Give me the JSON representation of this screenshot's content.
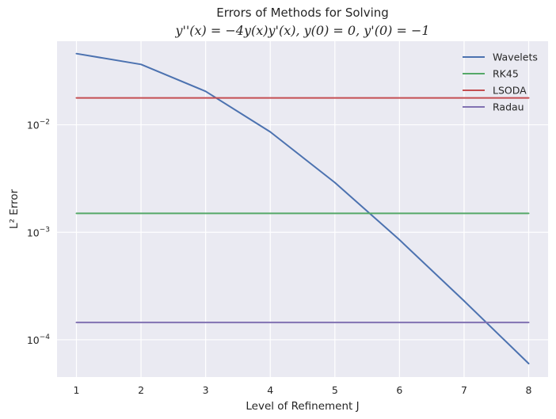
{
  "chart_data": {
    "type": "line",
    "title": "Errors of Methods for Solving",
    "subtitle": "y''(x) = −4y(x)y'(x), y(0) = 0, y'(0) = −1",
    "xlabel": "Level of Refinement J",
    "ylabel": "L² Error",
    "x": [
      1,
      2,
      3,
      4,
      5,
      6,
      7,
      8
    ],
    "xlim": [
      0.7,
      8.3
    ],
    "yscale": "log",
    "ylim": [
      4.5e-05,
      0.06
    ],
    "x_ticks": [
      "1",
      "2",
      "3",
      "4",
      "5",
      "6",
      "7",
      "8"
    ],
    "y_ticks": [
      {
        "value": 0.0001,
        "base": "10",
        "exp": "−4"
      },
      {
        "value": 0.001,
        "base": "10",
        "exp": "−3"
      },
      {
        "value": 0.01,
        "base": "10",
        "exp": "−2"
      }
    ],
    "grid": true,
    "legend_position": "top-right",
    "series": [
      {
        "name": "Wavelets",
        "color": "#4c72b0",
        "values": [
          0.046,
          0.0365,
          0.0205,
          0.0086,
          0.0029,
          0.00085,
          0.00023,
          6e-05
        ]
      },
      {
        "name": "RK45",
        "color": "#55a868",
        "values": [
          0.0015,
          0.0015,
          0.0015,
          0.0015,
          0.0015,
          0.0015,
          0.0015,
          0.0015
        ]
      },
      {
        "name": "LSODA",
        "color": "#c44e52",
        "values": [
          0.0178,
          0.0178,
          0.0178,
          0.0178,
          0.0178,
          0.0178,
          0.0178,
          0.0178
        ]
      },
      {
        "name": "Radau",
        "color": "#8172b2",
        "values": [
          0.000145,
          0.000145,
          0.000145,
          0.000145,
          0.000145,
          0.000145,
          0.000145,
          0.000145
        ]
      }
    ],
    "colors": {
      "plot_bg": "#eaeaf2",
      "grid": "#ffffff"
    }
  }
}
